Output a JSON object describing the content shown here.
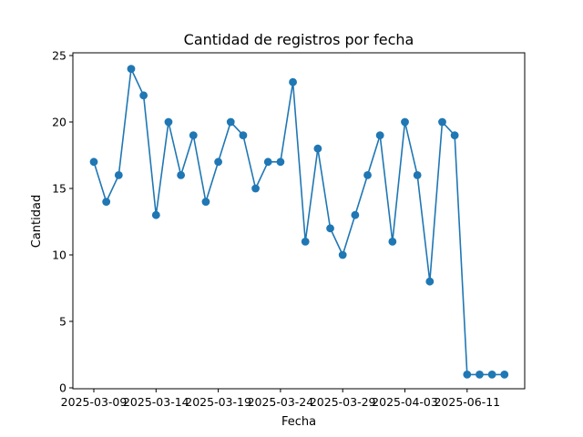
{
  "chart_data": {
    "type": "line",
    "title": "Cantidad de registros por fecha",
    "xlabel": "Fecha",
    "ylabel": "Cantidad",
    "ylim": [
      0,
      25
    ],
    "yticks": [
      0,
      5,
      10,
      15,
      20,
      25
    ],
    "xtick_labels": [
      "2025-03-09",
      "2025-03-14",
      "2025-03-19",
      "2025-03-24",
      "2025-03-29",
      "2025-04-03",
      "2025-06-11"
    ],
    "grid": false,
    "legend": "none",
    "line_color": "#1f77b4",
    "series": [
      {
        "values": [
          17,
          14,
          16,
          24,
          22,
          13,
          20,
          16,
          19,
          14,
          17,
          20,
          19,
          15,
          17,
          17,
          23,
          11,
          18,
          12,
          10,
          13,
          16,
          19,
          11,
          20,
          16,
          8,
          20,
          19,
          1,
          1,
          1,
          1
        ]
      }
    ]
  }
}
